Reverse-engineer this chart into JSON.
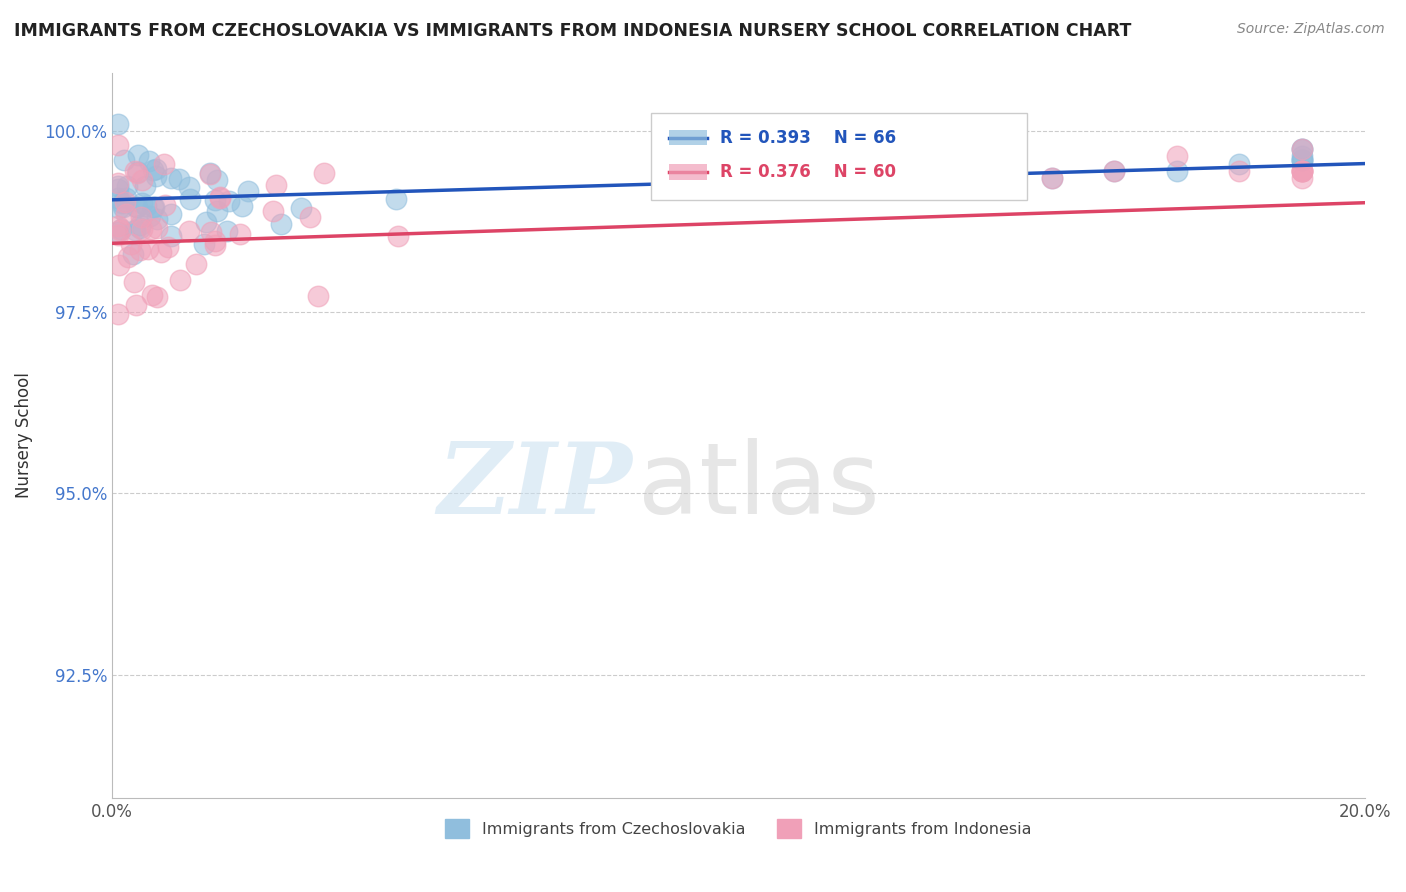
{
  "title": "IMMIGRANTS FROM CZECHOSLOVAKIA VS IMMIGRANTS FROM INDONESIA NURSERY SCHOOL CORRELATION CHART",
  "source": "Source: ZipAtlas.com",
  "ylabel": "Nursery School",
  "xlim": [
    0.0,
    0.2
  ],
  "ylim": [
    0.908,
    1.008
  ],
  "yticks": [
    0.925,
    0.95,
    0.975,
    1.0
  ],
  "ytick_labels": [
    "92.5%",
    "95.0%",
    "97.5%",
    "100.0%"
  ],
  "xticks": [
    0.0,
    0.05,
    0.1,
    0.15,
    0.2
  ],
  "xtick_labels": [
    "0.0%",
    "",
    "",
    "",
    "20.0%"
  ],
  "legend_R1": "R = 0.393",
  "legend_N1": "N = 66",
  "legend_R2": "R = 0.376",
  "legend_N2": "N = 60",
  "color_czech": "#90bedd",
  "color_indonesia": "#f0a0b8",
  "line_color_czech": "#2255bb",
  "line_color_indonesia": "#dd4466",
  "background_color": "#ffffff",
  "watermark_zip": "ZIP",
  "watermark_atlas": "atlas",
  "czech_intercept": 0.9905,
  "czech_slope": 0.025,
  "indo_intercept": 0.9845,
  "indo_slope": 0.028
}
